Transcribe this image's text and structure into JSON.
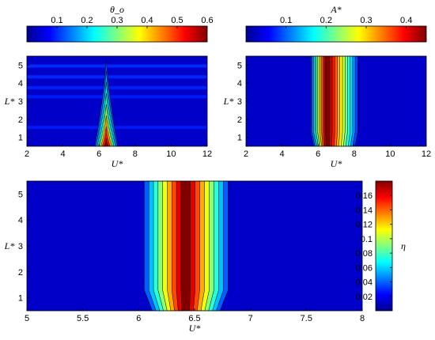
{
  "colormap": "jet",
  "charts": [
    {
      "id": "top-left",
      "type": "heatmap",
      "title": "θ_o",
      "colorbar": {
        "label": "θ_o",
        "range": [
          0.0,
          0.6
        ],
        "ticks": [
          0.1,
          0.2,
          0.3,
          0.4,
          0.5,
          0.6
        ],
        "tick_labels": [
          "0.1",
          "0.2",
          "0.3",
          "0.4",
          "0.5",
          "0.6"
        ]
      },
      "xlabel": "U*",
      "ylabel": "L*",
      "xlim": [
        2,
        12
      ],
      "ylim": [
        0.5,
        5.5
      ],
      "xticks": [
        2,
        4,
        6,
        8,
        10,
        12
      ],
      "xtick_labels": [
        "2",
        "4",
        "6",
        "8",
        "10",
        "12"
      ],
      "yticks": [
        1,
        2,
        3,
        4,
        5
      ],
      "ytick_labels": [
        "1",
        "2",
        "3",
        "4",
        "5"
      ],
      "peak": {
        "x": 6.4,
        "y": 0.7,
        "value": 0.6
      },
      "note": "narrow tongue at U*≈6.4 tapering toward higher L*"
    },
    {
      "id": "top-right",
      "type": "heatmap",
      "title": "A*",
      "colorbar": {
        "label": "A*",
        "range": [
          0.0,
          0.45
        ],
        "ticks": [
          0.1,
          0.2,
          0.3,
          0.4
        ],
        "tick_labels": [
          "0.1",
          "0.2",
          "0.3",
          "0.4"
        ]
      },
      "xlabel": "U*",
      "ylabel": "L*",
      "xlim": [
        2,
        12
      ],
      "ylim": [
        0.5,
        5.5
      ],
      "xticks": [
        2,
        4,
        6,
        8,
        10,
        12
      ],
      "xtick_labels": [
        "2",
        "4",
        "6",
        "8",
        "10",
        "12"
      ],
      "yticks": [
        1,
        2,
        3,
        4,
        5
      ],
      "ytick_labels": [
        "1",
        "2",
        "3",
        "4",
        "5"
      ],
      "band": {
        "x_range": [
          5.6,
          8.2
        ],
        "peak_x": 6.5,
        "peak_value": 0.45
      }
    },
    {
      "id": "bottom",
      "type": "heatmap",
      "title": "η",
      "colorbar": {
        "label": "η",
        "range": [
          0.0,
          0.18
        ],
        "ticks": [
          0.02,
          0.04,
          0.06,
          0.08,
          0.1,
          0.12,
          0.14,
          0.16
        ],
        "tick_labels": [
          "0.02",
          "0.04",
          "0.06",
          "0.08",
          "0.1",
          "0.12",
          "0.14",
          "0.16"
        ]
      },
      "xlabel": "U*",
      "ylabel": "L*",
      "xlim": [
        5,
        8
      ],
      "ylim": [
        0.5,
        5.5
      ],
      "xticks": [
        5,
        5.5,
        6,
        6.5,
        7,
        7.5,
        8
      ],
      "xtick_labels": [
        "5",
        "5.5",
        "6",
        "6.5",
        "7",
        "7.5",
        "8"
      ],
      "yticks": [
        1,
        2,
        3,
        4,
        5
      ],
      "ytick_labels": [
        "1",
        "2",
        "3",
        "4",
        "5"
      ],
      "band": {
        "x_range": [
          6.05,
          6.8
        ],
        "peak_x": 6.42,
        "peak_value": 0.18
      }
    }
  ]
}
